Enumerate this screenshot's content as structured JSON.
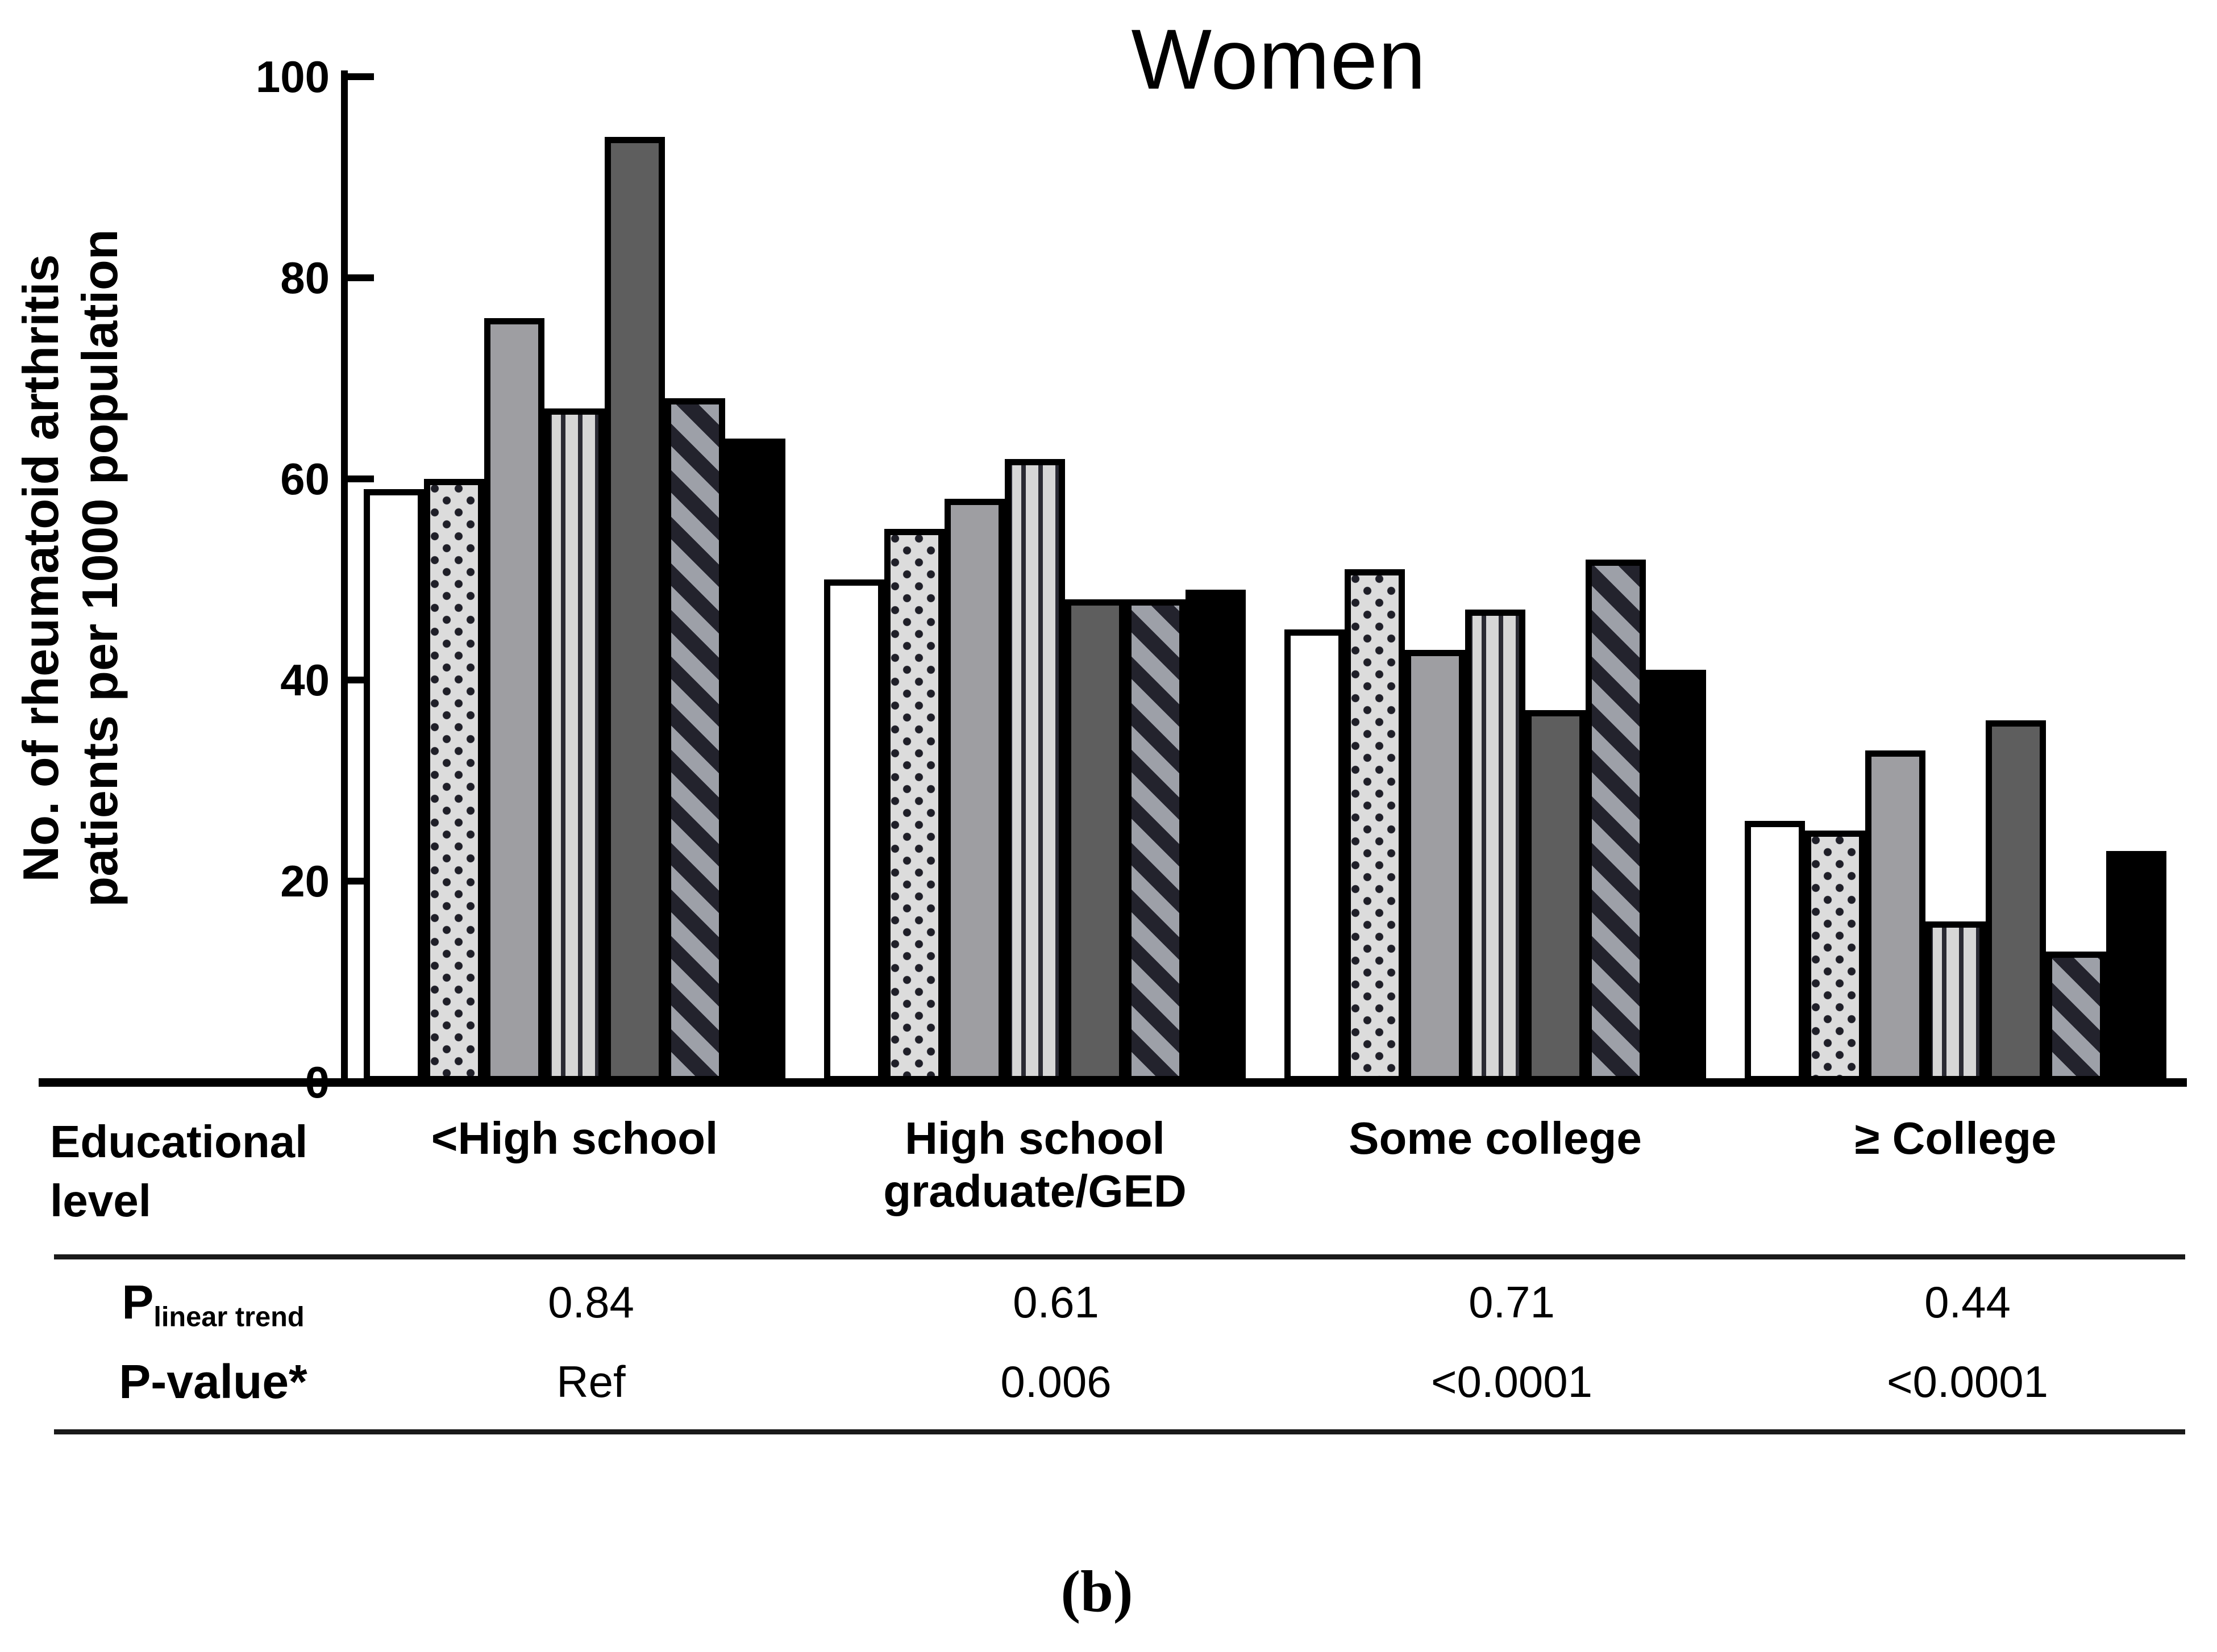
{
  "title": "Women",
  "caption": "(b)",
  "y_axis": {
    "label_line1": "No. of rheumatoid arthritis",
    "label_line2": "patients per 1000 population",
    "ticks": [
      "0",
      "20",
      "40",
      "60",
      "80",
      "100"
    ]
  },
  "x_axis": {
    "label_line1": "Educational",
    "label_line2": "level",
    "categories": [
      "<High school",
      "High school graduate/GED",
      "Some college",
      "≥ College"
    ]
  },
  "chart_data": {
    "type": "bar",
    "title": "Women",
    "ylabel": "No. of rheumatoid arthritis patients per 1000 population",
    "xlabel": "Educational level",
    "ylim": [
      0,
      100
    ],
    "yticks": [
      0,
      20,
      40,
      60,
      80,
      100
    ],
    "grid": false,
    "legend": "none",
    "categories": [
      "<High school",
      "High school graduate/GED",
      "Some college",
      "≥ College"
    ],
    "series": [
      {
        "name": "bar1-white",
        "pattern": "white",
        "values": [
          59,
          50,
          45,
          26
        ]
      },
      {
        "name": "bar2-dotted",
        "pattern": "dotted",
        "values": [
          60,
          55,
          51,
          25
        ]
      },
      {
        "name": "bar3-gray",
        "pattern": "gray",
        "values": [
          76,
          58,
          43,
          33
        ]
      },
      {
        "name": "bar4-vertical-stripes",
        "pattern": "vertical-stripes",
        "values": [
          67,
          62,
          47,
          16
        ]
      },
      {
        "name": "bar5-dark-gray",
        "pattern": "dark-gray",
        "values": [
          94,
          48,
          37,
          36
        ]
      },
      {
        "name": "bar6-diagonal-stripes",
        "pattern": "diagonal-stripes",
        "values": [
          68,
          48,
          52,
          13
        ]
      },
      {
        "name": "bar7-black",
        "pattern": "black",
        "values": [
          64,
          49,
          41,
          23
        ]
      }
    ]
  },
  "table": {
    "rows": [
      {
        "label": "P",
        "label_subscript": "linear trend",
        "values": [
          "0.84",
          "0.61",
          "0.71",
          "0.44"
        ]
      },
      {
        "label": "P-value*",
        "label_subscript": "",
        "values": [
          "Ref",
          "0.006",
          "<0.0001",
          "<0.0001"
        ]
      }
    ]
  },
  "colors": {
    "foreground": "#000000",
    "background": "#ffffff",
    "bar_gray": "#9e9ea2",
    "bar_dark_gray": "#5e5e5e",
    "dotted_fill": "#dcdcdc",
    "dot_color": "#1f1f28",
    "vstripe_fill": "#d6d6d6",
    "vstripe_line": "#2a2a33",
    "diag_light": "#9da0a8",
    "diag_dark": "#23232d"
  }
}
